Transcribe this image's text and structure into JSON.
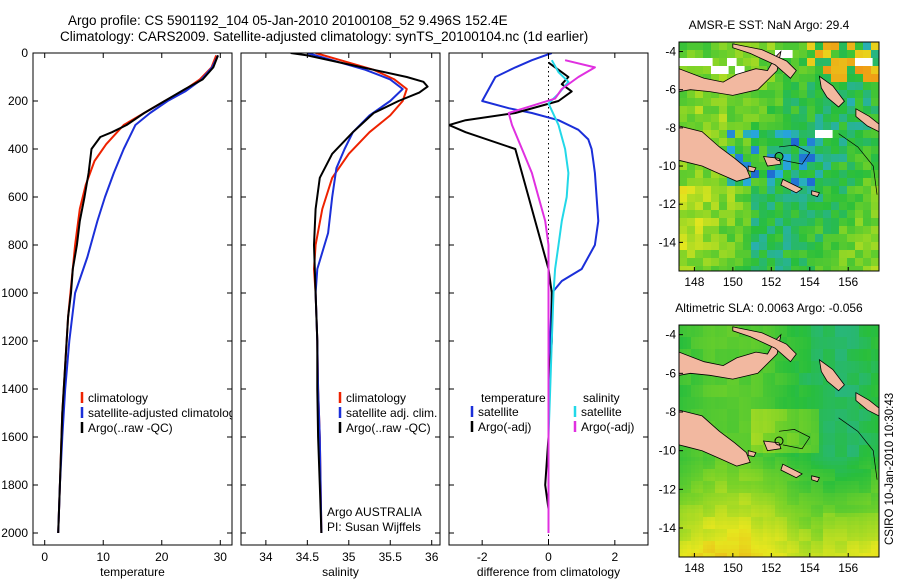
{
  "header": {
    "title_line1": "Argo profile: CS 5901192_104 05-Jan-2010 20100108_52 9.496S 152.4E",
    "title_line2": "Climatology: CARS2009. Satellite-adjusted climatology: synTS_20100104.nc (1d earlier)"
  },
  "footer_stamp": "CSIRO 10-Jan-2010 10:30:43",
  "colors": {
    "climatology": "#ee2200",
    "satellite": "#1b2fd9",
    "argo": "#000000",
    "salinity_satellite": "#22d8e8",
    "salinity_argo": "#e030e0",
    "land": "#f2b8a0"
  },
  "chart_data": [
    {
      "type": "line",
      "panel": "temperature",
      "xlabel": "temperature",
      "ylabel": "",
      "xlim": [
        -2,
        32
      ],
      "ylim": [
        2050,
        0
      ],
      "xticks": [
        0,
        10,
        20,
        30
      ],
      "yticks": [
        0,
        200,
        400,
        600,
        800,
        1000,
        1200,
        1400,
        1600,
        1800,
        2000
      ],
      "legend": [
        "climatology",
        "satellite-adjusted climatology",
        "Argo(..raw -QC)"
      ],
      "series": [
        {
          "name": "climatology",
          "color": "#ee2200",
          "x": [
            29.3,
            28.5,
            26.5,
            23.5,
            20.5,
            17.0,
            13.5,
            10.5,
            8.5,
            7.0,
            6.0,
            5.2,
            4.6,
            4.0,
            3.5,
            3.0,
            2.6,
            2.3
          ],
          "y": [
            10,
            60,
            110,
            160,
            200,
            250,
            300,
            380,
            450,
            550,
            650,
            800,
            950,
            1100,
            1300,
            1500,
            1800,
            2000
          ]
        },
        {
          "name": "satellite-adjusted climatology",
          "color": "#1b2fd9",
          "x": [
            29.6,
            28.6,
            26.8,
            24.0,
            21.0,
            18.0,
            15.5,
            13.5,
            11.8,
            10.3,
            9.0,
            7.3,
            5.2,
            4.2,
            3.5,
            3.0,
            2.6,
            2.3
          ],
          "y": [
            10,
            60,
            110,
            160,
            200,
            250,
            300,
            400,
            500,
            600,
            700,
            850,
            1000,
            1200,
            1400,
            1600,
            1800,
            2000
          ]
        },
        {
          "name": "Argo(..raw -QC)",
          "color": "#000000",
          "x": [
            29.6,
            28.8,
            27.0,
            24.0,
            20.5,
            17.0,
            14.0,
            11.5,
            9.5,
            8.0,
            7.5,
            6.8,
            6.0,
            5.5,
            4.8,
            4.5,
            4.0,
            3.5,
            3.0,
            2.6,
            2.3
          ],
          "y": [
            10,
            60,
            110,
            150,
            200,
            250,
            300,
            330,
            350,
            400,
            500,
            600,
            700,
            800,
            900,
            1000,
            1100,
            1300,
            1500,
            1800,
            2000
          ]
        }
      ]
    },
    {
      "type": "line",
      "panel": "salinity",
      "xlabel": "salinity",
      "ylabel": "",
      "xlim": [
        33.7,
        36.1
      ],
      "ylim": [
        2050,
        0
      ],
      "xticks": [
        34,
        34.5,
        35,
        35.5,
        36
      ],
      "legend": [
        "climatology",
        "satellite adj. clim.",
        "Argo(..raw -QC)"
      ],
      "annotation": [
        "Argo AUSTRALIA",
        "PI: Susan Wijffels"
      ],
      "series": [
        {
          "name": "climatology",
          "color": "#ee2200",
          "x": [
            34.6,
            34.9,
            35.3,
            35.55,
            35.7,
            35.65,
            35.5,
            35.25,
            35.0,
            34.8,
            34.68,
            34.6,
            34.58,
            34.6,
            34.62,
            34.63,
            34.65,
            34.66,
            34.67
          ],
          "y": [
            0,
            30,
            70,
            110,
            150,
            200,
            260,
            330,
            420,
            520,
            650,
            800,
            900,
            1000,
            1200,
            1400,
            1600,
            1800,
            2000
          ]
        },
        {
          "name": "satellite adj. clim.",
          "color": "#1b2fd9",
          "x": [
            34.5,
            34.8,
            35.2,
            35.5,
            35.65,
            35.5,
            35.25,
            35.05,
            34.95,
            34.85,
            34.8,
            34.75,
            34.62,
            34.6,
            34.62,
            34.63,
            34.65,
            34.66,
            34.67
          ],
          "y": [
            0,
            30,
            70,
            110,
            150,
            200,
            260,
            330,
            400,
            480,
            600,
            750,
            900,
            1000,
            1200,
            1400,
            1600,
            1800,
            2000
          ]
        },
        {
          "name": "Argo(..raw -QC)",
          "color": "#000000",
          "x": [
            34.3,
            34.5,
            34.9,
            35.3,
            35.7,
            35.9,
            35.95,
            35.85,
            35.6,
            35.3,
            35.05,
            34.8,
            34.65,
            34.6,
            34.58,
            34.6,
            34.62,
            34.62,
            34.63,
            34.65,
            34.66,
            34.67
          ],
          "y": [
            0,
            10,
            40,
            70,
            100,
            120,
            140,
            165,
            200,
            250,
            330,
            420,
            520,
            650,
            800,
            1000,
            1200,
            1400,
            1600,
            1800,
            1900,
            2000
          ]
        }
      ]
    },
    {
      "type": "line",
      "panel": "difference",
      "xlabel": "difference from climatology",
      "ylabel": "",
      "xlim": [
        -3,
        3
      ],
      "ylim": [
        2050,
        0
      ],
      "xticks": [
        -2,
        0,
        2
      ],
      "legend_headers": [
        "temperature",
        "salinity"
      ],
      "legend": [
        "satellite",
        "Argo(-adj)",
        "satellite",
        "Argo(-adj)"
      ],
      "series": [
        {
          "name": "satellite",
          "group": "temperature",
          "color": "#1b2fd9",
          "x": [
            0.1,
            -0.5,
            -1.0,
            -1.6,
            -2.0,
            -1.2,
            -0.5,
            0.3,
            0.9,
            1.2,
            1.3,
            1.35,
            1.4,
            1.45,
            1.5,
            1.4,
            1.0,
            0.4,
            0.1,
            0.05,
            0.0,
            0.0,
            0.0,
            0.0
          ],
          "y": [
            0,
            30,
            60,
            100,
            200,
            230,
            250,
            280,
            320,
            360,
            400,
            450,
            500,
            600,
            700,
            800,
            900,
            950,
            1000,
            1200,
            1400,
            1600,
            1800,
            2000
          ]
        },
        {
          "name": "Argo(-adj)",
          "group": "temperature",
          "color": "#000000",
          "x": [
            0.0,
            0.3,
            0.6,
            0.4,
            0.7,
            0.3,
            -1.0,
            -2.5,
            -3.0,
            -2.5,
            -1.0,
            -0.6,
            -0.4,
            0.0,
            0.1,
            0.1,
            0.0,
            0.0,
            -0.1,
            0.0,
            0.0,
            0.0
          ],
          "y": [
            40,
            70,
            100,
            130,
            160,
            200,
            250,
            280,
            300,
            330,
            400,
            600,
            700,
            900,
            1000,
            1200,
            1400,
            1600,
            1800,
            1900,
            1950,
            2000
          ]
        },
        {
          "name": "satellite",
          "group": "salinity",
          "color": "#22d8e8",
          "x": [
            0.1,
            0.3,
            0.6,
            0.3,
            0.0,
            0.3,
            0.5,
            0.6,
            0.55,
            0.4,
            0.3,
            0.2,
            0.15,
            0.1,
            0.05,
            0.0,
            0.0,
            0.0
          ],
          "y": [
            30,
            80,
            120,
            170,
            210,
            300,
            400,
            500,
            600,
            700,
            800,
            900,
            1000,
            1200,
            1400,
            1600,
            1800,
            2000
          ]
        },
        {
          "name": "Argo(-adj)",
          "group": "salinity",
          "color": "#e030e0",
          "x": [
            0.5,
            1.4,
            0.9,
            0.4,
            0.2,
            -0.5,
            -1.2,
            -1.1,
            -0.8,
            -0.5,
            -0.3,
            -0.1,
            0.0,
            0.0,
            0.0,
            0.0
          ],
          "y": [
            30,
            60,
            100,
            150,
            190,
            220,
            250,
            300,
            400,
            500,
            600,
            700,
            800,
            1000,
            1400,
            2000
          ]
        }
      ]
    },
    {
      "type": "heatmap",
      "panel": "sst-map",
      "title": "AMSR-E SST: NaN Argo: 29.4",
      "xlim": [
        147.2,
        157.6
      ],
      "ylim": [
        -15.5,
        -3.5
      ],
      "xticks": [
        148,
        150,
        152,
        154,
        156
      ],
      "yticks": [
        -4,
        -6,
        -8,
        -10,
        -12,
        -14
      ]
    },
    {
      "type": "heatmap",
      "panel": "sla-map",
      "title": "Altimetric SLA: 0.0063 Argo: -0.056",
      "xlim": [
        147.2,
        157.6
      ],
      "ylim": [
        -15.5,
        -3.5
      ],
      "xticks": [
        148,
        150,
        152,
        154,
        156
      ],
      "yticks": [
        -4,
        -6,
        -8,
        -10,
        -12,
        -14
      ]
    }
  ]
}
